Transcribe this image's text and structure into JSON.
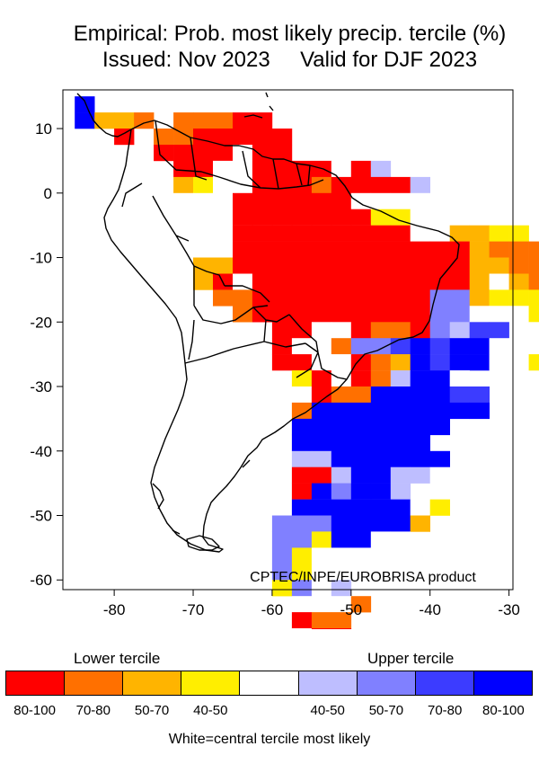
{
  "title_line1": "Empirical: Prob. most likely precip. tercile (%)",
  "title_line2": "Issued: Nov 2023     Valid for DJF 2023",
  "credit": "CPTEC/INPE/EUROBRISA product",
  "axes": {
    "x_ticks": [
      "-80",
      "-70",
      "-60",
      "-50",
      "-40",
      "-30"
    ],
    "y_ticks": [
      "10",
      "0",
      "-10",
      "-20",
      "-30",
      "-40",
      "-50",
      "-60"
    ],
    "lon_range": [
      -86.5,
      -29.5
    ],
    "lat_range": [
      -61.5,
      16
    ]
  },
  "legend": {
    "lower_label": "Lower tercile",
    "upper_label": "Upper tercile",
    "footnote": "White=central tercile most likely",
    "bins": [
      {
        "label": "80-100",
        "color": "#ff0000"
      },
      {
        "label": "70-80",
        "color": "#ff7000"
      },
      {
        "label": "50-70",
        "color": "#ffb400"
      },
      {
        "label": "40-50",
        "color": "#ffee00"
      },
      {
        "label": "",
        "color": "#ffffff"
      },
      {
        "label": "40-50",
        "color": "#bebeff"
      },
      {
        "label": "50-70",
        "color": "#8080ff"
      },
      {
        "label": "70-80",
        "color": "#3c3cff"
      },
      {
        "label": "80-100",
        "color": "#0000ff"
      }
    ]
  },
  "grid": {
    "cell_deg": 2.5,
    "lon0": -85,
    "lat0": 15,
    "legend_codes": "0=no data, 1=lower 80-100, 2=lower 70-80, 3=lower 50-70, 4=lower 40-50, 5=central, 6=upper 40-50, 7=upper 50-70, 8=upper 70-80, 9=upper 80-100",
    "rows": [
      "90000000000000000000000",
      "93320222110000000000000",
      "00102211111000000000000",
      "00001111511000000000000",
      "00000115511115160000000",
      "00000345511121111600000",
      "00000555111111555500000",
      "00000555111111144550000",
      "00000555111111111553344",
      "00000055111111111111322220",
      "00000033111111111111332220",
      "00000031511111111111353200",
      "00000002211111111177344400",
      "00000000211111111177555400",
      "00000000001155122176880500",
      "00000000001552778989955000",
      "00000000001155123989955400",
      "00000000000415126995000000",
      "00000000000512299998800000",
      "00000000000299999999900000",
      "00000000000999999990000000",
      "00000000000999999900000000",
      "00000000000669999990000000",
      "00000000000116996650000000",
      "00000000000197996000000000",
      "00000000000999999540000000",
      "00000000007779999300000000",
      "00000000007749955000000000",
      "00000000007455500000000000",
      "00000000007455000000000000",
      "00000000004756000000000000",
      "00000000000555200000000000",
      "00000000000122000000000000",
      "00000000000511000000000000",
      "00000000000011000000000000",
      "00000000000000110000000000"
    ]
  }
}
